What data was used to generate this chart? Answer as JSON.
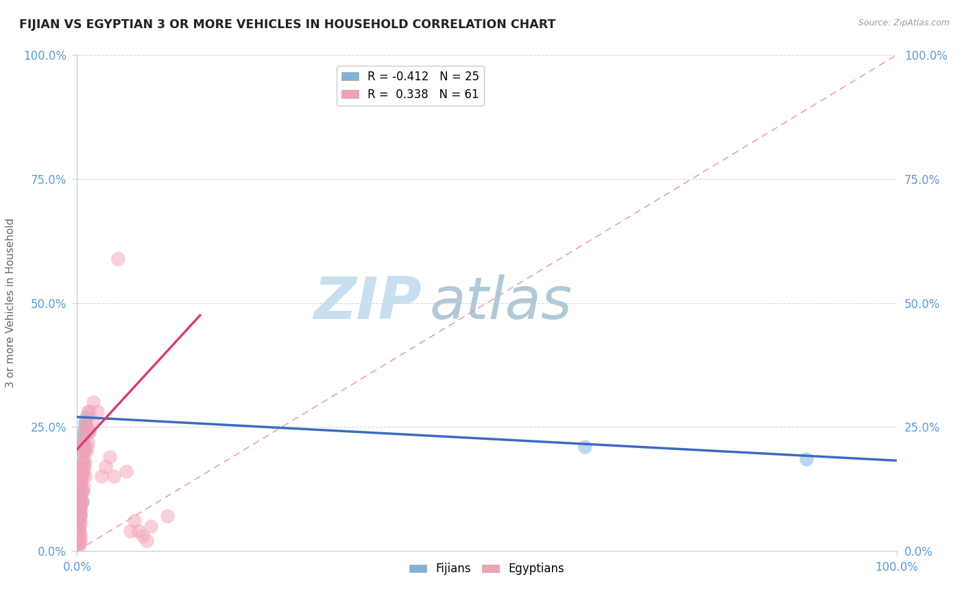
{
  "title": "FIJIAN VS EGYPTIAN 3 OR MORE VEHICLES IN HOUSEHOLD CORRELATION CHART",
  "source_text": "Source: ZipAtlas.com",
  "ylabel": "3 or more Vehicles in Household",
  "xlim": [
    0.0,
    1.0
  ],
  "ylim": [
    0.0,
    1.0
  ],
  "ytick_positions": [
    0.0,
    0.25,
    0.5,
    0.75,
    1.0
  ],
  "ytick_labels": [
    "0.0%",
    "25.0%",
    "50.0%",
    "75.0%",
    "100.0%"
  ],
  "xtick_positions": [
    0.0,
    1.0
  ],
  "xtick_labels": [
    "0.0%",
    "100.0%"
  ],
  "fijian_R": -0.412,
  "fijian_N": 25,
  "egyptian_R": 0.338,
  "egyptian_N": 61,
  "fijian_color": "#7fb3d9",
  "egyptian_color": "#f4a0b5",
  "fijian_line_color": "#3a6bc4",
  "egyptian_line_color": "#d44070",
  "ref_line_color": "#e8a0b0",
  "watermark_zip": "ZIP",
  "watermark_atlas": "atlas",
  "watermark_color_zip": "#c8dff0",
  "watermark_color_atlas": "#b0c8d8",
  "tick_color": "#5b9bd5",
  "grid_color": "#d8d8d8",
  "fijian_scatter": [
    [
      0.001,
      0.05
    ],
    [
      0.002,
      0.06
    ],
    [
      0.002,
      0.04
    ],
    [
      0.003,
      0.08
    ],
    [
      0.003,
      0.1
    ],
    [
      0.004,
      0.09
    ],
    [
      0.004,
      0.07
    ],
    [
      0.004,
      0.11
    ],
    [
      0.005,
      0.13
    ],
    [
      0.005,
      0.15
    ],
    [
      0.006,
      0.12
    ],
    [
      0.006,
      0.1
    ],
    [
      0.006,
      0.16
    ],
    [
      0.007,
      0.2
    ],
    [
      0.007,
      0.22
    ],
    [
      0.007,
      0.18
    ],
    [
      0.008,
      0.24
    ],
    [
      0.008,
      0.23
    ],
    [
      0.009,
      0.21
    ],
    [
      0.01,
      0.26
    ],
    [
      0.01,
      0.25
    ],
    [
      0.011,
      0.27
    ],
    [
      0.015,
      0.24
    ],
    [
      0.62,
      0.21
    ],
    [
      0.89,
      0.185
    ]
  ],
  "egyptian_scatter": [
    [
      0.001,
      0.015
    ],
    [
      0.001,
      0.02
    ],
    [
      0.001,
      0.03
    ],
    [
      0.002,
      0.01
    ],
    [
      0.002,
      0.05
    ],
    [
      0.002,
      0.025
    ],
    [
      0.002,
      0.08
    ],
    [
      0.003,
      0.015
    ],
    [
      0.003,
      0.04
    ],
    [
      0.003,
      0.06
    ],
    [
      0.003,
      0.1
    ],
    [
      0.004,
      0.02
    ],
    [
      0.004,
      0.07
    ],
    [
      0.004,
      0.09
    ],
    [
      0.004,
      0.11
    ],
    [
      0.004,
      0.13
    ],
    [
      0.005,
      0.03
    ],
    [
      0.005,
      0.055
    ],
    [
      0.005,
      0.08
    ],
    [
      0.005,
      0.14
    ],
    [
      0.005,
      0.16
    ],
    [
      0.006,
      0.1
    ],
    [
      0.006,
      0.17
    ],
    [
      0.006,
      0.2
    ],
    [
      0.007,
      0.12
    ],
    [
      0.007,
      0.15
    ],
    [
      0.007,
      0.18
    ],
    [
      0.007,
      0.22
    ],
    [
      0.008,
      0.13
    ],
    [
      0.008,
      0.16
    ],
    [
      0.008,
      0.22
    ],
    [
      0.009,
      0.17
    ],
    [
      0.009,
      0.2
    ],
    [
      0.009,
      0.24
    ],
    [
      0.01,
      0.15
    ],
    [
      0.01,
      0.18
    ],
    [
      0.01,
      0.26
    ],
    [
      0.011,
      0.2
    ],
    [
      0.011,
      0.24
    ],
    [
      0.012,
      0.21
    ],
    [
      0.012,
      0.25
    ],
    [
      0.013,
      0.22
    ],
    [
      0.013,
      0.28
    ],
    [
      0.015,
      0.24
    ],
    [
      0.015,
      0.28
    ],
    [
      0.02,
      0.26
    ],
    [
      0.02,
      0.3
    ],
    [
      0.025,
      0.28
    ],
    [
      0.03,
      0.15
    ],
    [
      0.035,
      0.17
    ],
    [
      0.04,
      0.19
    ],
    [
      0.045,
      0.15
    ],
    [
      0.05,
      0.59
    ],
    [
      0.06,
      0.16
    ],
    [
      0.065,
      0.04
    ],
    [
      0.07,
      0.06
    ],
    [
      0.075,
      0.04
    ],
    [
      0.08,
      0.03
    ],
    [
      0.085,
      0.02
    ],
    [
      0.09,
      0.05
    ],
    [
      0.11,
      0.07
    ]
  ]
}
